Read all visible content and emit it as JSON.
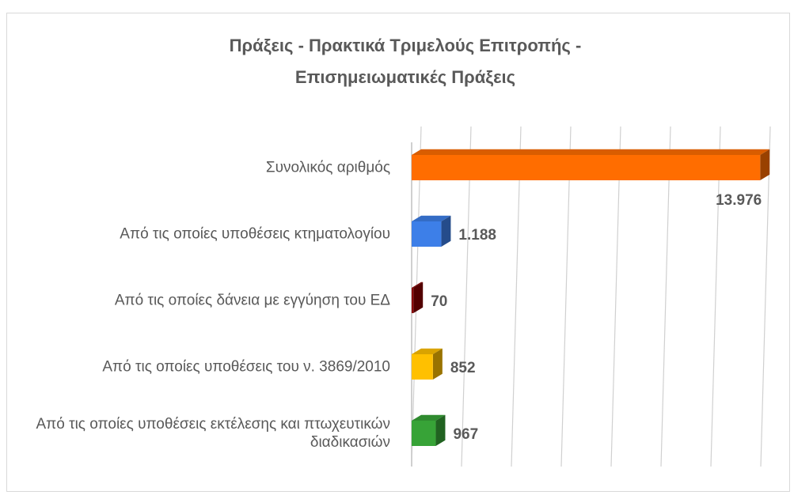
{
  "chart_data": {
    "type": "bar3d_horizontal",
    "title": "Πράξεις - Πρακτικά Τριμελούς Επιτροπής - Επισημειωματικές Πράξεις",
    "categories": [
      "Συνολικός αριθμός",
      "Από τις οποίες υποθέσεις κτηματολογίου",
      "Από τις οποίες δάνεια με εγγύηση του ΕΔ",
      "Από τις οποίες υποθέσεις του ν. 3869/2010",
      "Από τις οποίες υποθέσεις εκτέλεσης και πτωχευτικών διαδικασιών"
    ],
    "values": [
      13976,
      1188,
      70,
      852,
      967
    ],
    "value_labels": [
      "13.976",
      "1.188",
      "70",
      "852",
      "967"
    ],
    "colors": [
      "#ff6d00",
      "#3d7fe8",
      "#8b0000",
      "#ffc000",
      "#37a337"
    ],
    "xlim": [
      0,
      14000
    ],
    "xticks": [
      0,
      2000,
      4000,
      6000,
      8000,
      10000,
      12000,
      14000
    ],
    "grid": true
  }
}
